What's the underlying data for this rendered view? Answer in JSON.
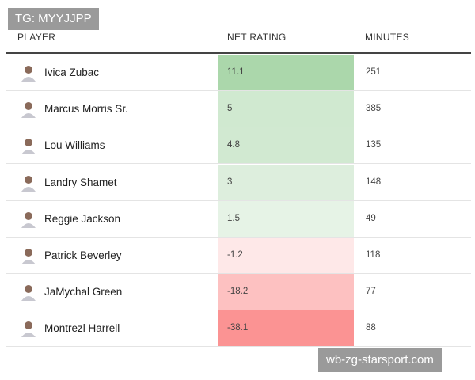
{
  "watermark": "TG: MYYJJPP",
  "footer_watermark": "wb-zg-starsport.com",
  "table": {
    "headers": [
      "PLAYER",
      "NET RATING",
      "MINUTES"
    ],
    "rows": [
      [
        "Ivica Zubac",
        "11.1",
        "251"
      ],
      [
        "Marcus Morris Sr.",
        "5",
        "385"
      ],
      [
        "Lou Williams",
        "4.8",
        "135"
      ],
      [
        "Landry Shamet",
        "3",
        "148"
      ],
      [
        "Reggie Jackson",
        "1.5",
        "49"
      ],
      [
        "Patrick Beverley",
        "-1.2",
        "118"
      ],
      [
        "JaMychal Green",
        "-18.2",
        "77"
      ],
      [
        "Montrezl Harrell",
        "-38.1",
        "88"
      ]
    ]
  }
}
